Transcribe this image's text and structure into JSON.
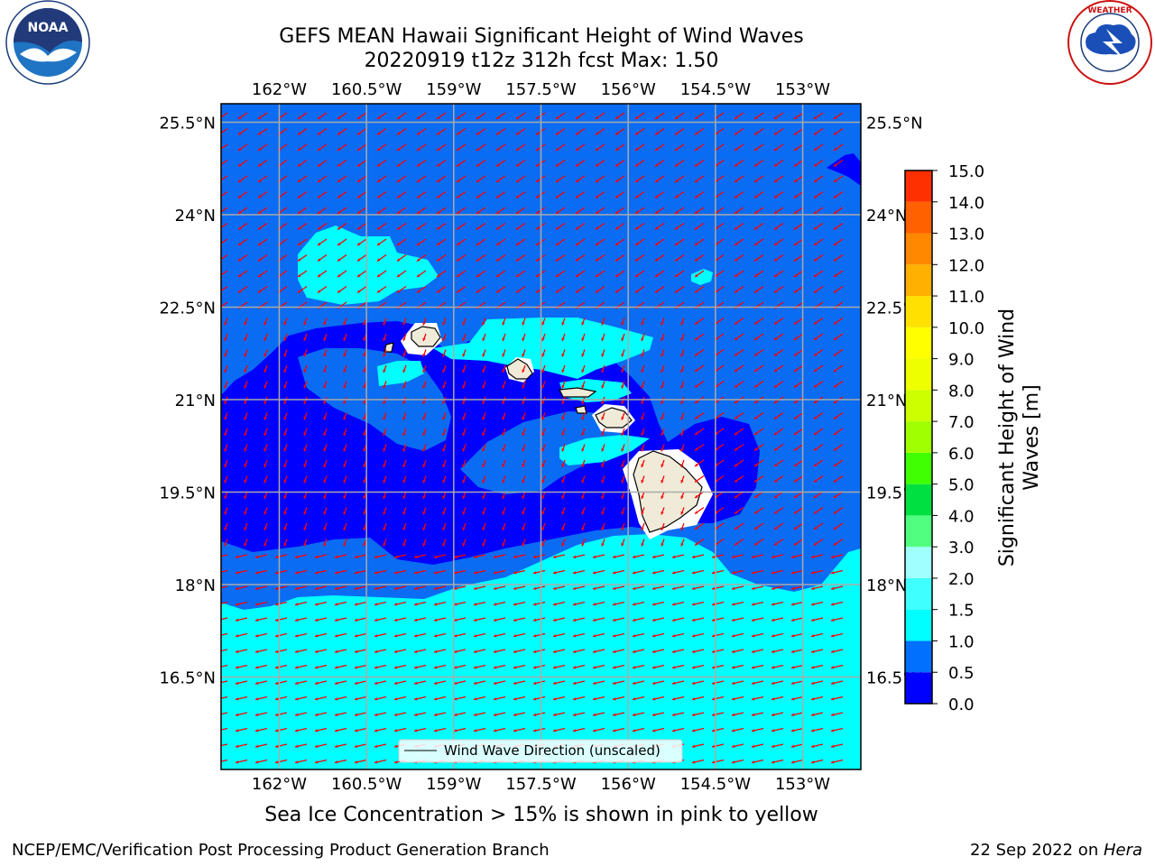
{
  "header": {
    "title_line1": "GEFS MEAN Hawaii Significant Height of Wind Waves",
    "title_line2": "20220919 t12z 312h fcst   Max: 1.50"
  },
  "logos": {
    "left": {
      "name": "noaa-logo",
      "text": "NOAA",
      "ring_text": "NATIONAL OCEANIC AND ATMOSPHERIC ADMINISTRATION · U.S. DEPARTMENT OF COMMERCE"
    },
    "right": {
      "name": "nws-logo",
      "ring_text": "NATIONAL WEATHER SERVICE"
    }
  },
  "map": {
    "lon_range": [
      -163,
      -152
    ],
    "lat_range": [
      15,
      25.8
    ],
    "lon_ticks": [
      {
        "value": -162,
        "label": "162°W"
      },
      {
        "value": -160.5,
        "label": "160.5°W"
      },
      {
        "value": -159,
        "label": "159°W"
      },
      {
        "value": -157.5,
        "label": "157.5°W"
      },
      {
        "value": -156,
        "label": "156°W"
      },
      {
        "value": -154.5,
        "label": "154.5°W"
      },
      {
        "value": -153,
        "label": "153°W"
      }
    ],
    "lat_ticks": [
      {
        "value": 25.5,
        "label": "25.5°N"
      },
      {
        "value": 24,
        "label": "24°N"
      },
      {
        "value": 22.5,
        "label": "22.5°N"
      },
      {
        "value": 21,
        "label": "21°N"
      },
      {
        "value": 19.5,
        "label": "19.5°N"
      },
      {
        "value": 18,
        "label": "18°N"
      },
      {
        "value": 16.5,
        "label": "16.5°N"
      }
    ],
    "colors": {
      "ocean_0_0_5": "#0000ff",
      "ocean_0_5_1_0": "#0a6cf2",
      "ocean_1_0_1_5": "#00ffff",
      "land": "#efebd8",
      "missing": "#ffffff",
      "vector": "#ff0000",
      "grid": "#aaaaaa"
    },
    "legend_label": "Wind Wave Direction (unscaled)"
  },
  "colorbar": {
    "label_line1": "Significant Height of Wind",
    "label_line2": "Waves [m]",
    "levels": [
      {
        "value": "0.0",
        "color": "#0000ff"
      },
      {
        "value": "0.5",
        "color": "#0070ff"
      },
      {
        "value": "1.0",
        "color": "#00ffff"
      },
      {
        "value": "1.5",
        "color": "#40ffff"
      },
      {
        "value": "2.0",
        "color": "#a0ffff"
      },
      {
        "value": "3.0",
        "color": "#50ff80"
      },
      {
        "value": "4.0",
        "color": "#00e040"
      },
      {
        "value": "5.0",
        "color": "#40ff00"
      },
      {
        "value": "6.0",
        "color": "#a0ff00"
      },
      {
        "value": "7.0",
        "color": "#ccff00"
      },
      {
        "value": "8.0",
        "color": "#eeff00"
      },
      {
        "value": "9.0",
        "color": "#ffff00"
      },
      {
        "value": "10.0",
        "color": "#ffe000"
      },
      {
        "value": "11.0",
        "color": "#ffb000"
      },
      {
        "value": "12.0",
        "color": "#ff8800"
      },
      {
        "value": "13.0",
        "color": "#ff6000"
      },
      {
        "value": "14.0",
        "color": "#ff3000"
      },
      {
        "value": "15.0",
        "color": "#ff0000"
      }
    ]
  },
  "caption": "Sea Ice Concentration > 15% is shown in pink to yellow",
  "footer": {
    "left": "NCEP/EMC/Verification Post Processing Product Generation Branch",
    "date": "22 Sep 2022 on ",
    "host": "Hera"
  }
}
